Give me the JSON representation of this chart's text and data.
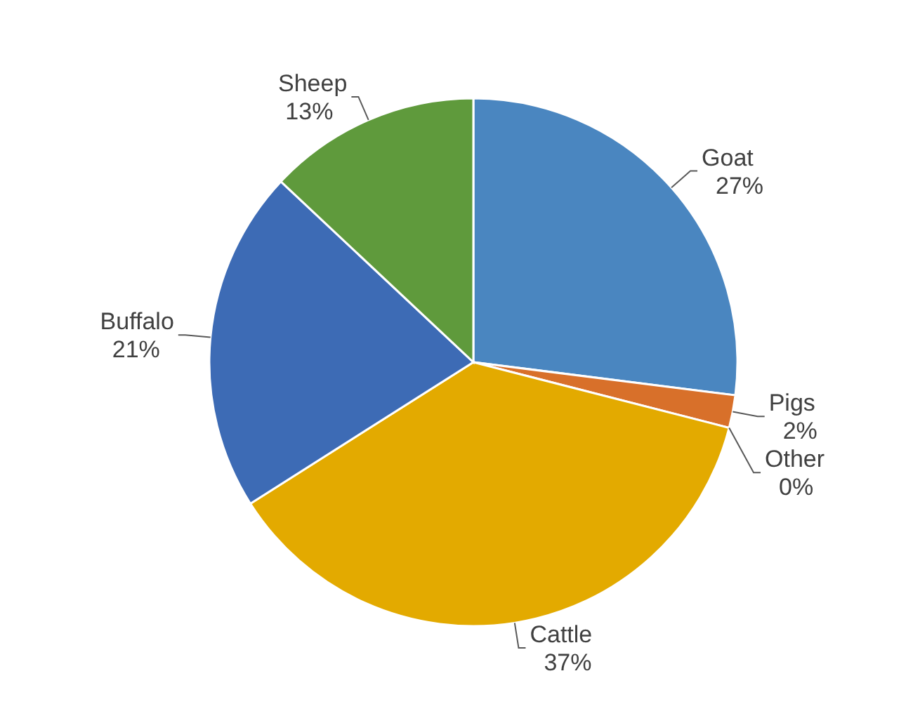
{
  "chart_data": {
    "type": "pie",
    "categories": [
      "Goat",
      "Pigs",
      "Other",
      "Cattle",
      "Buffalo",
      "Sheep"
    ],
    "values": [
      27,
      2,
      0,
      37,
      21,
      13
    ],
    "value_labels": [
      "27%",
      "2%",
      "0%",
      "37%",
      "21%",
      "13%"
    ],
    "colors": [
      "#4a86c0",
      "#d8702a",
      "#a6a6a6",
      "#e3aa00",
      "#3d6bb5",
      "#5f9a3c"
    ]
  }
}
